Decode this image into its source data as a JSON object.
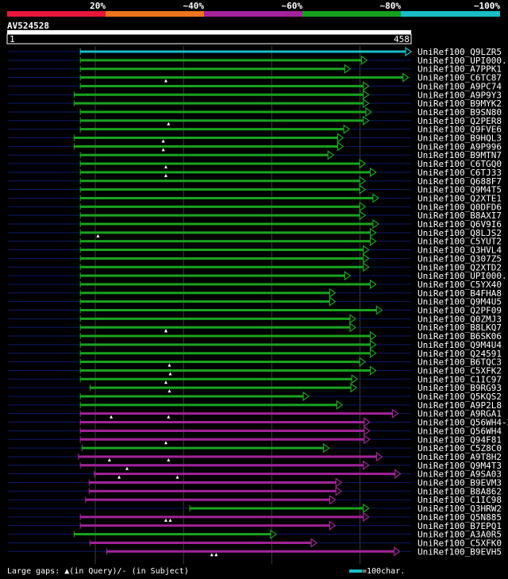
{
  "chart_data": {
    "type": "alignment-map",
    "title": "AV524528",
    "query_length": 458,
    "axis_start_label": "1",
    "axis_end_label": "458",
    "color_scale": [
      {
        "label": "20%",
        "color": "#e8173a"
      },
      {
        "label": "~40%",
        "color": "#ef7420"
      },
      {
        "label": "~60%",
        "color": "#a3239b"
      },
      {
        "label": "~80%",
        "color": "#15a01c"
      },
      {
        "label": "~100%",
        "color": "#1bbcc6"
      }
    ],
    "hits": [
      {
        "name": "UniRef100_Q9LZR5",
        "start": 83,
        "end": 458,
        "color": "cyan",
        "gaps": []
      },
      {
        "name": "UniRef100_UPI000...",
        "start": 83,
        "end": 408,
        "color": "green",
        "gaps": []
      },
      {
        "name": "UniRef100_A7PPK1",
        "start": 83,
        "end": 389,
        "color": "green",
        "gaps": []
      },
      {
        "name": "UniRef100_C6TC87",
        "start": 83,
        "end": 455,
        "color": "green",
        "gaps": [
          180
        ]
      },
      {
        "name": "UniRef100_A9PC74",
        "start": 83,
        "end": 410,
        "color": "green",
        "gaps": []
      },
      {
        "name": "UniRef100_A9P9Y3",
        "start": 76,
        "end": 410,
        "color": "green",
        "gaps": []
      },
      {
        "name": "UniRef100_B9MYK2",
        "start": 76,
        "end": 410,
        "color": "green",
        "gaps": []
      },
      {
        "name": "UniRef100_B9SN80",
        "start": 83,
        "end": 413,
        "color": "green",
        "gaps": []
      },
      {
        "name": "UniRef100_Q2PER8",
        "start": 83,
        "end": 410,
        "color": "green",
        "gaps": [
          183
        ]
      },
      {
        "name": "UniRef100_Q9FVE6",
        "start": 83,
        "end": 388,
        "color": "green",
        "gaps": []
      },
      {
        "name": "UniRef100_B9HQL3",
        "start": 76,
        "end": 381,
        "color": "green",
        "gaps": [
          177
        ]
      },
      {
        "name": "UniRef100_A9P996",
        "start": 76,
        "end": 381,
        "color": "green",
        "gaps": [
          177
        ]
      },
      {
        "name": "UniRef100_B9MTN7",
        "start": 83,
        "end": 370,
        "color": "green",
        "gaps": []
      },
      {
        "name": "UniRef100_C6TGQ0",
        "start": 83,
        "end": 406,
        "color": "green",
        "gaps": [
          180
        ]
      },
      {
        "name": "UniRef100_C6TJ33",
        "start": 83,
        "end": 418,
        "color": "green",
        "gaps": [
          180
        ]
      },
      {
        "name": "UniRef100_Q688F7",
        "start": 83,
        "end": 406,
        "color": "green",
        "gaps": []
      },
      {
        "name": "UniRef100_Q9M4T5",
        "start": 83,
        "end": 406,
        "color": "green",
        "gaps": []
      },
      {
        "name": "UniRef100_Q2XTE1",
        "start": 83,
        "end": 421,
        "color": "green",
        "gaps": []
      },
      {
        "name": "UniRef100_Q0DFD6",
        "start": 83,
        "end": 406,
        "color": "green",
        "gaps": []
      },
      {
        "name": "UniRef100_B8AXI7",
        "start": 83,
        "end": 406,
        "color": "green",
        "gaps": []
      },
      {
        "name": "UniRef100_Q6V9I6",
        "start": 83,
        "end": 421,
        "color": "green",
        "gaps": []
      },
      {
        "name": "UniRef100_Q8LJS2",
        "start": 83,
        "end": 418,
        "color": "green",
        "gaps": [
          103
        ]
      },
      {
        "name": "UniRef100_C5YUT2",
        "start": 83,
        "end": 418,
        "color": "green",
        "gaps": []
      },
      {
        "name": "UniRef100_Q3HVL4",
        "start": 83,
        "end": 410,
        "color": "green",
        "gaps": []
      },
      {
        "name": "UniRef100_Q307Z5",
        "start": 83,
        "end": 410,
        "color": "green",
        "gaps": []
      },
      {
        "name": "UniRef100_Q2XTD2",
        "start": 83,
        "end": 410,
        "color": "green",
        "gaps": []
      },
      {
        "name": "UniRef100_UPI000...",
        "start": 83,
        "end": 389,
        "color": "green",
        "gaps": []
      },
      {
        "name": "UniRef100_C5YX40",
        "start": 83,
        "end": 418,
        "color": "green",
        "gaps": []
      },
      {
        "name": "UniRef100_B4FHA8",
        "start": 83,
        "end": 372,
        "color": "green",
        "gaps": []
      },
      {
        "name": "UniRef100_Q9M4U5",
        "start": 83,
        "end": 372,
        "color": "green",
        "gaps": []
      },
      {
        "name": "UniRef100_Q2PF09",
        "start": 83,
        "end": 425,
        "color": "green",
        "gaps": []
      },
      {
        "name": "UniRef100_Q0ZMJ3",
        "start": 83,
        "end": 395,
        "color": "green",
        "gaps": []
      },
      {
        "name": "UniRef100_B8LKQ7",
        "start": 83,
        "end": 395,
        "color": "green",
        "gaps": [
          180,
          180
        ]
      },
      {
        "name": "UniRef100_B6SK06",
        "start": 83,
        "end": 418,
        "color": "green",
        "gaps": []
      },
      {
        "name": "UniRef100_Q9M4U4",
        "start": 83,
        "end": 418,
        "color": "green",
        "gaps": []
      },
      {
        "name": "UniRef100_Q24591",
        "start": 83,
        "end": 418,
        "color": "green",
        "gaps": []
      },
      {
        "name": "UniRef100_B6TQC3",
        "start": 83,
        "end": 406,
        "color": "green",
        "gaps": [
          184
        ]
      },
      {
        "name": "UniRef100_C5XFK2",
        "start": 83,
        "end": 418,
        "color": "green",
        "gaps": [
          185
        ]
      },
      {
        "name": "UniRef100_C1IC97",
        "start": 83,
        "end": 397,
        "color": "green",
        "gaps": [
          180
        ]
      },
      {
        "name": "UniRef100_B9RG93",
        "start": 94,
        "end": 396,
        "color": "green",
        "gaps": [
          184
        ]
      },
      {
        "name": "UniRef100_Q5KQS2",
        "start": 83,
        "end": 342,
        "color": "green",
        "gaps": []
      },
      {
        "name": "UniRef100_A9P2L8",
        "start": 83,
        "end": 380,
        "color": "green",
        "gaps": []
      },
      {
        "name": "UniRef100_A9RGA1",
        "start": 83,
        "end": 443,
        "color": "magenta",
        "gaps": [
          118,
          183
        ]
      },
      {
        "name": "UniRef100_Q56WH4-2",
        "start": 83,
        "end": 411,
        "color": "magenta",
        "gaps": []
      },
      {
        "name": "UniRef100_Q56WH4",
        "start": 83,
        "end": 411,
        "color": "magenta",
        "gaps": []
      },
      {
        "name": "UniRef100_Q94F81",
        "start": 83,
        "end": 411,
        "color": "magenta",
        "gaps": [
          180
        ]
      },
      {
        "name": "UniRef100_C5Z8C0",
        "start": 85,
        "end": 365,
        "color": "green",
        "gaps": []
      },
      {
        "name": "UniRef100_A9T8H2",
        "start": 81,
        "end": 425,
        "color": "magenta",
        "gaps": [
          116,
          183
        ]
      },
      {
        "name": "UniRef100_Q9M4T3",
        "start": 83,
        "end": 410,
        "color": "magenta",
        "gaps": [
          136
        ]
      },
      {
        "name": "UniRef100_A9SA03",
        "start": 99,
        "end": 446,
        "color": "magenta",
        "gaps": [
          127,
          193
        ]
      },
      {
        "name": "UniRef100_B9EVM3",
        "start": 93,
        "end": 379,
        "color": "magenta",
        "gaps": []
      },
      {
        "name": "UniRef100_B8A862",
        "start": 93,
        "end": 379,
        "color": "magenta",
        "gaps": []
      },
      {
        "name": "UniRef100_C1IC98",
        "start": 89,
        "end": 372,
        "color": "magenta",
        "gaps": []
      },
      {
        "name": "UniRef100_Q3HRW2",
        "start": 207,
        "end": 410,
        "color": "green",
        "gaps": []
      },
      {
        "name": "UniRef100_Q5N885",
        "start": 83,
        "end": 410,
        "color": "magenta",
        "gaps": [
          180,
          185
        ]
      },
      {
        "name": "UniRef100_B7EPQ1",
        "start": 83,
        "end": 372,
        "color": "magenta",
        "gaps": []
      },
      {
        "name": "UniRef100_A3A0R5",
        "start": 76,
        "end": 305,
        "color": "green",
        "gaps": []
      },
      {
        "name": "UniRef100_C5XFK0",
        "start": 94,
        "end": 351,
        "color": "magenta",
        "gaps": []
      },
      {
        "name": "UniRef100_B9EVH5",
        "start": 113,
        "end": 445,
        "color": "magenta",
        "gaps": [
          232,
          237
        ]
      }
    ]
  },
  "footer": {
    "gaps_text_a": "Large gaps:",
    "gaps_text_b": "(in Query)/",
    "gaps_text_c": "(in Subject)",
    "legend_text": "=100char."
  }
}
